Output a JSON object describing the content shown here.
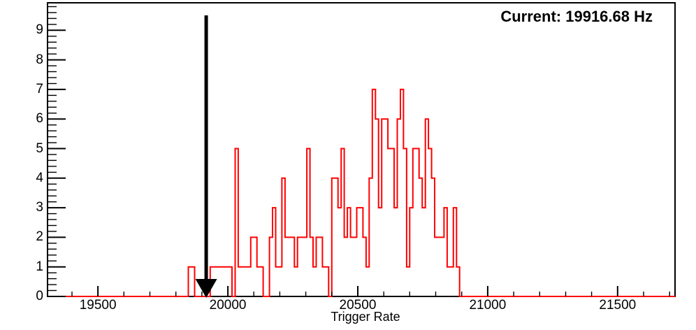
{
  "chart_data": {
    "type": "bar",
    "style": "root-step-histogram-outline",
    "title": "",
    "xlabel": "Trigger Rate",
    "ylabel": "",
    "annotation": "Current: 19916.68 Hz",
    "current_rate_hz": 19916.68,
    "xlim": [
      19306,
      21721
    ],
    "ylim": [
      0,
      9.93
    ],
    "grid": false,
    "legend": false,
    "x_major_ticks": [
      19500,
      20000,
      20500,
      21000,
      21500
    ],
    "x_tick_labels": [
      "19500",
      "20000",
      "20500",
      "21000",
      "21500"
    ],
    "x_minor_tick_step": 100,
    "y_major_ticks": [
      0,
      1,
      2,
      3,
      4,
      5,
      6,
      7,
      8,
      9
    ],
    "y_tick_labels": [
      "0",
      "1",
      "2",
      "3",
      "4",
      "5",
      "6",
      "7",
      "8",
      "9"
    ],
    "y_minor_tick_step": 0.2,
    "bins": {
      "start_hz": 19848,
      "bin_width_hz": 12,
      "heights": [
        1,
        1,
        0,
        0,
        0,
        0,
        0,
        1,
        1,
        1,
        1,
        1,
        1,
        1,
        0,
        5,
        1,
        1,
        1,
        1,
        2,
        2,
        1,
        1,
        0,
        0,
        2,
        3,
        1,
        1,
        4,
        2,
        2,
        2,
        1,
        2,
        2,
        2,
        5,
        2,
        1,
        2,
        2,
        1,
        1,
        0,
        4,
        4,
        3,
        5,
        2,
        3,
        2,
        2,
        3,
        3,
        2,
        1,
        4,
        7,
        6,
        3,
        6,
        6,
        5,
        5,
        3,
        6,
        7,
        5,
        1,
        3,
        5,
        5,
        4,
        3,
        6,
        5,
        4,
        2,
        2,
        2,
        3,
        1,
        1,
        3,
        1
      ]
    },
    "marker_arrow": {
      "value_hz": 19916.68,
      "direction": "down"
    },
    "colors": {
      "histogram": "#ff0000",
      "axis": "#000000",
      "arrow": "#000000",
      "text": "#000000",
      "background": "#ffffff"
    }
  }
}
